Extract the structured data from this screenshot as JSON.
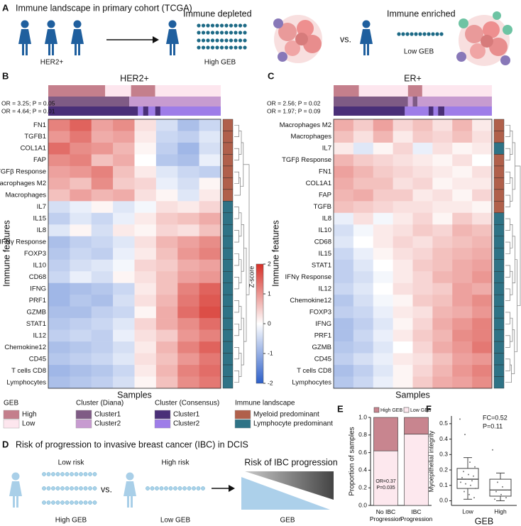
{
  "panel_a": {
    "letter": "A",
    "title": "Immune landscape in primary cohort (TCGA)",
    "her2": "HER2+",
    "depleted": "Immune depleted",
    "high_geb": "High GEB",
    "vs": "vs.",
    "enriched": "Immune enriched",
    "low_geb": "Low GEB"
  },
  "chart_data": [
    {
      "type": "heatmap",
      "panel": "B",
      "title": "HER2+",
      "annotations": [
        "OR = 3.25; P = 0.05",
        "OR = 4.64; P = 0.01"
      ],
      "xlabel": "Samples",
      "ylabel": "Immune features",
      "rows": [
        "FN1",
        "TGFB1",
        "COL1A1",
        "FAP",
        "TGFβ Response",
        "Macrophages M2",
        "Macrophages",
        "IL7",
        "IL15",
        "IL8",
        "IFNγ Response",
        "FOXP3",
        "IL10",
        "CD68",
        "IFNG",
        "PRF1",
        "GZMB",
        "STAT1",
        "IL12",
        "Chemokine12",
        "CD45",
        "T cells CD8",
        "Lymphocytes"
      ],
      "values": [
        [
          1.2,
          1.5,
          0.9,
          1.1,
          0.3,
          -0.4,
          -0.8,
          -0.5
        ],
        [
          1.0,
          1.3,
          0.8,
          0.9,
          0.2,
          -0.5,
          -0.6,
          -0.3
        ],
        [
          1.4,
          1.1,
          1.0,
          0.7,
          0.1,
          -0.6,
          -0.9,
          -0.4
        ],
        [
          1.1,
          1.2,
          0.6,
          0.8,
          0.0,
          -0.7,
          -0.8,
          -0.2
        ],
        [
          0.9,
          1.0,
          1.2,
          0.6,
          0.2,
          -0.3,
          -0.5,
          -0.6
        ],
        [
          0.8,
          0.6,
          1.1,
          0.5,
          0.4,
          -0.2,
          -0.4,
          0.1
        ],
        [
          0.6,
          0.9,
          0.7,
          0.8,
          0.3,
          0.1,
          -0.3,
          0.2
        ],
        [
          -0.4,
          -0.2,
          0.1,
          -0.3,
          -0.1,
          0.3,
          0.2,
          0.4
        ],
        [
          -0.6,
          -0.3,
          -0.5,
          -0.2,
          0.2,
          0.5,
          0.6,
          0.8
        ],
        [
          -0.3,
          0.1,
          -0.4,
          0.2,
          0.1,
          0.4,
          0.3,
          0.6
        ],
        [
          -0.8,
          -0.6,
          -0.5,
          -0.3,
          0.3,
          0.7,
          0.9,
          1.1
        ],
        [
          -0.7,
          -0.5,
          -0.6,
          -0.2,
          0.2,
          0.6,
          1.0,
          1.2
        ],
        [
          -0.6,
          -0.4,
          -0.3,
          -0.1,
          0.4,
          0.5,
          0.8,
          0.9
        ],
        [
          -0.5,
          -0.2,
          -0.4,
          0.1,
          0.3,
          0.6,
          0.9,
          1.0
        ],
        [
          -0.9,
          -0.8,
          -0.7,
          -0.5,
          0.2,
          0.6,
          1.2,
          1.5
        ],
        [
          -0.9,
          -0.7,
          -0.8,
          -0.4,
          0.3,
          0.7,
          1.3,
          1.6
        ],
        [
          -0.8,
          -0.8,
          -0.6,
          -0.5,
          0.1,
          0.8,
          1.4,
          1.7
        ],
        [
          -0.7,
          -0.6,
          -0.5,
          -0.3,
          0.4,
          0.8,
          1.1,
          1.4
        ],
        [
          -0.6,
          -0.5,
          -0.6,
          -0.2,
          0.3,
          0.5,
          1.0,
          1.2
        ],
        [
          -0.8,
          -0.7,
          -0.6,
          -0.4,
          0.2,
          0.7,
          1.2,
          1.5
        ],
        [
          -0.7,
          -0.6,
          -0.5,
          -0.3,
          0.3,
          0.6,
          1.0,
          1.3
        ],
        [
          -0.9,
          -0.8,
          -0.7,
          -0.5,
          0.2,
          0.7,
          1.2,
          1.4
        ],
        [
          -0.8,
          -0.7,
          -0.6,
          -0.4,
          0.1,
          0.6,
          1.1,
          1.3
        ]
      ]
    },
    {
      "type": "heatmap",
      "panel": "C",
      "title": "ER+",
      "annotations": [
        "OR = 2.56; P = 0.02",
        "OR = 1.97; P = 0.09"
      ],
      "xlabel": "Samples",
      "ylabel": "Immune features",
      "rows": [
        "Macrophages M2",
        "Macrophages",
        "IL7",
        "TGFβ Response",
        "FN1",
        "COL1A1",
        "FAP",
        "TGFB",
        "IL8",
        "IL10",
        "CD68",
        "IL15",
        "STAT1",
        "IFNγ Response",
        "IL12",
        "Chemokine12",
        "FOXP3",
        "IFNG",
        "PRF1",
        "GZMB",
        "CD45",
        "T cells CD8",
        "Lymphocytes"
      ],
      "values": [
        [
          0.8,
          0.5,
          0.9,
          0.4,
          0.6,
          0.3,
          0.7,
          0.2
        ],
        [
          0.6,
          0.3,
          0.7,
          0.2,
          0.5,
          0.4,
          0.6,
          0.3
        ],
        [
          0.2,
          -0.3,
          0.1,
          0.4,
          -0.2,
          0.3,
          0.1,
          0.2
        ],
        [
          0.7,
          0.5,
          0.4,
          0.3,
          0.2,
          0.1,
          0.3,
          0.0
        ],
        [
          0.9,
          0.7,
          0.5,
          0.4,
          0.3,
          0.2,
          0.1,
          0.3
        ],
        [
          0.8,
          0.6,
          0.6,
          0.3,
          0.4,
          0.1,
          0.2,
          0.2
        ],
        [
          0.7,
          0.8,
          0.5,
          0.5,
          0.2,
          0.3,
          0.1,
          0.4
        ],
        [
          0.6,
          0.5,
          0.4,
          0.3,
          0.3,
          0.2,
          0.2,
          0.1
        ],
        [
          -0.2,
          0.3,
          -0.1,
          0.2,
          0.4,
          0.1,
          0.5,
          0.3
        ],
        [
          -0.4,
          -0.1,
          0.2,
          0.3,
          0.5,
          0.4,
          0.7,
          0.6
        ],
        [
          -0.3,
          0.0,
          0.2,
          0.4,
          0.3,
          0.5,
          0.6,
          0.7
        ],
        [
          -0.5,
          -0.2,
          0.1,
          0.3,
          0.4,
          0.6,
          0.7,
          0.8
        ],
        [
          -0.6,
          -0.3,
          0.0,
          0.2,
          0.5,
          0.6,
          0.8,
          0.9
        ],
        [
          -0.6,
          -0.4,
          -0.1,
          0.2,
          0.4,
          0.7,
          0.8,
          1.0
        ],
        [
          -0.5,
          -0.3,
          0.0,
          0.3,
          0.4,
          0.5,
          0.9,
          0.8
        ],
        [
          -0.7,
          -0.4,
          -0.1,
          0.1,
          0.5,
          0.6,
          0.9,
          1.1
        ],
        [
          -0.6,
          -0.5,
          -0.2,
          0.2,
          0.3,
          0.7,
          0.8,
          1.0
        ],
        [
          -0.8,
          -0.6,
          -0.3,
          0.1,
          0.4,
          0.8,
          1.0,
          1.2
        ],
        [
          -0.8,
          -0.5,
          -0.2,
          0.2,
          0.5,
          0.7,
          1.1,
          1.2
        ],
        [
          -0.7,
          -0.6,
          -0.3,
          0.0,
          0.4,
          0.8,
          1.0,
          1.3
        ],
        [
          -0.6,
          -0.4,
          -0.2,
          0.2,
          0.3,
          0.6,
          0.9,
          1.0
        ],
        [
          -0.8,
          -0.6,
          -0.3,
          0.1,
          0.4,
          0.7,
          1.0,
          1.2
        ],
        [
          -0.7,
          -0.5,
          -0.2,
          0.1,
          0.5,
          0.8,
          0.9,
          1.1
        ]
      ]
    },
    {
      "type": "bar",
      "stacked": true,
      "panel": "E",
      "ylabel": "Proportion of samples",
      "categories": [
        "No IBC Progression",
        "IBC Progression"
      ],
      "series": [
        {
          "name": "Low GEB",
          "color": "#fde8ee",
          "values": [
            0.62,
            0.81
          ]
        },
        {
          "name": "High GEB",
          "color": "#c8858f",
          "values": [
            0.38,
            0.19
          ]
        }
      ],
      "ylim": [
        0,
        1
      ],
      "yticks": [
        {
          "value": 0,
          "label": "0.0"
        },
        0.2,
        0.4,
        0.6,
        0.8,
        {
          "value": 1,
          "label": "1.0"
        }
      ],
      "annotations": [
        "OR=0.37",
        "P=0.035"
      ]
    },
    {
      "type": "box",
      "panel": "F",
      "xlabel": "GEB",
      "ylabel": "Myoepithelial integrity",
      "categories": [
        "Low",
        "High"
      ],
      "color": "#444444",
      "boxes": [
        {
          "min": 0.01,
          "q1": 0.08,
          "median": 0.14,
          "q3": 0.21,
          "max": 0.28
        },
        {
          "min": 0.0,
          "q1": 0.03,
          "median": 0.07,
          "q3": 0.14,
          "max": 0.18
        }
      ],
      "points": [
        [
          0.53,
          0.43,
          0.25,
          0.22,
          0.19,
          0.17,
          0.16,
          0.15,
          0.14,
          0.13,
          0.12,
          0.11,
          0.1,
          0.08,
          0.06,
          0.04,
          0.02
        ],
        [
          0.33,
          0.12,
          0.09,
          0.07,
          0.06,
          0.04,
          0.02,
          0.01
        ]
      ],
      "ylim": [
        -0.03,
        0.55
      ],
      "yticks": [
        {
          "value": 0,
          "label": "0.0"
        },
        0.1,
        0.2,
        0.3,
        0.4,
        0.5
      ],
      "annotations": [
        "FC=0.52",
        "P=0.11"
      ]
    }
  ],
  "colorbar": {
    "label": "Z-score",
    "lim": [
      -2,
      2
    ],
    "ticks": [
      2,
      1,
      0,
      -1,
      -2
    ],
    "colors": [
      "#2c5fc9",
      "#ffffff",
      "#d62f27"
    ]
  },
  "legend": {
    "geb": {
      "title": "GEB",
      "items": [
        {
          "label": "High",
          "color": "#c47f8c"
        },
        {
          "label": "Low",
          "color": "#fde6ee"
        }
      ]
    },
    "diana": {
      "title": "Cluster (Diana)",
      "items": [
        {
          "label": "Cluster1",
          "color": "#7f5b85"
        },
        {
          "label": "Cluster2",
          "color": "#c79bd0"
        }
      ]
    },
    "consensus": {
      "title": "Cluster (Consensus)",
      "items": [
        {
          "label": "Cluster1",
          "color": "#4a2f78"
        },
        {
          "label": "Cluster2",
          "color": "#9e7de8"
        }
      ]
    },
    "landscape": {
      "title": "Immune landscape",
      "items": [
        {
          "label": "Myeloid predominant",
          "color": "#b0604b"
        },
        {
          "label": "Lymphocyte predominant",
          "color": "#2f7386"
        }
      ]
    }
  },
  "panel_d": {
    "letter": "D",
    "title": "Risk of progression to invasive breast cancer (IBC) in DCIS",
    "low_risk": "Low risk",
    "high_geb": "High GEB",
    "vs": "vs.",
    "high_risk": "High risk",
    "low_geb": "Low GEB",
    "risk": "Risk of IBC progression",
    "geb": "GEB"
  }
}
